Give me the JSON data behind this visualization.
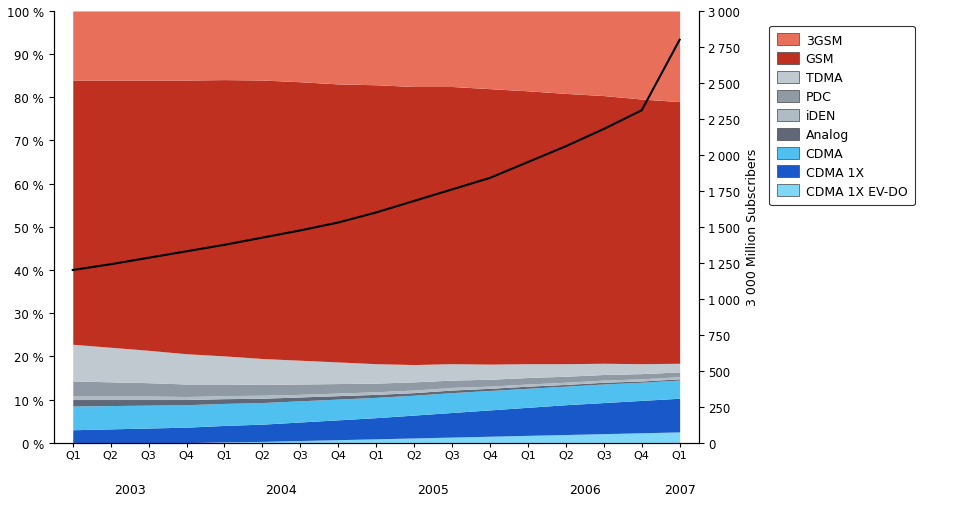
{
  "right_axis_label": "3 000 Million Subscribers",
  "x_labels_years": [
    "2003",
    "2004",
    "2005",
    "2006",
    "2007"
  ],
  "x_labels_quarters": [
    "Q1",
    "Q2",
    "Q3",
    "Q4",
    "Q1",
    "Q2",
    "Q3",
    "Q4",
    "Q1",
    "Q2",
    "Q3",
    "Q4",
    "Q1",
    "Q2",
    "Q3",
    "Q4",
    "Q1"
  ],
  "series": {
    "CDMA 1X EV-DO": [
      0.0,
      0.0,
      0.0,
      0.0,
      0.2,
      0.3,
      0.5,
      0.7,
      0.9,
      1.1,
      1.3,
      1.5,
      1.7,
      1.9,
      2.1,
      2.3,
      2.5
    ],
    "CDMA 1X": [
      3.0,
      3.2,
      3.4,
      3.6,
      3.8,
      4.0,
      4.3,
      4.6,
      4.9,
      5.3,
      5.7,
      6.1,
      6.5,
      6.9,
      7.2,
      7.5,
      7.8
    ],
    "CDMA": [
      5.5,
      5.4,
      5.3,
      5.2,
      5.1,
      5.0,
      4.9,
      4.8,
      4.7,
      4.6,
      4.6,
      4.5,
      4.4,
      4.3,
      4.3,
      4.2,
      4.2
    ],
    "Analog": [
      1.5,
      1.4,
      1.3,
      1.2,
      1.1,
      1.0,
      0.9,
      0.8,
      0.7,
      0.6,
      0.6,
      0.5,
      0.5,
      0.4,
      0.4,
      0.3,
      0.3
    ],
    "iDEN": [
      0.8,
      0.8,
      0.8,
      0.7,
      0.7,
      0.7,
      0.6,
      0.6,
      0.6,
      0.6,
      0.6,
      0.5,
      0.5,
      0.5,
      0.5,
      0.5,
      0.5
    ],
    "PDC": [
      3.5,
      3.3,
      3.1,
      2.9,
      2.7,
      2.5,
      2.4,
      2.2,
      2.0,
      1.9,
      1.7,
      1.6,
      1.5,
      1.4,
      1.3,
      1.2,
      1.1
    ],
    "TDMA": [
      8.5,
      8.0,
      7.5,
      7.0,
      6.5,
      6.0,
      5.5,
      5.0,
      4.5,
      4.0,
      3.8,
      3.5,
      3.2,
      2.9,
      2.6,
      2.3,
      2.0
    ],
    "GSM": [
      61.2,
      61.9,
      62.6,
      63.4,
      64.0,
      64.5,
      64.5,
      64.4,
      64.6,
      64.4,
      64.2,
      63.8,
      63.2,
      62.6,
      62.0,
      61.3,
      60.6
    ],
    "3GSM": [
      16.0,
      16.0,
      16.0,
      16.0,
      15.9,
      16.0,
      16.4,
      16.9,
      17.1,
      17.5,
      17.5,
      18.0,
      18.5,
      19.1,
      19.6,
      20.4,
      21.0
    ]
  },
  "total_subscribers_million": [
    1200,
    1240,
    1285,
    1330,
    1375,
    1425,
    1475,
    1530,
    1600,
    1680,
    1760,
    1840,
    1950,
    2060,
    2180,
    2310,
    2800
  ],
  "stack_order": [
    "CDMA 1X EV-DO",
    "CDMA 1X",
    "CDMA",
    "Analog",
    "iDEN",
    "PDC",
    "TDMA",
    "GSM",
    "3GSM"
  ],
  "colors": {
    "3GSM": "#e8705a",
    "GSM": "#c03020",
    "TDMA": "#c0c8d0",
    "PDC": "#909aa5",
    "iDEN": "#b0bcc4",
    "Analog": "#606878",
    "CDMA": "#50c0f0",
    "CDMA 1X": "#1858c8",
    "CDMA 1X EV-DO": "#80d8f8"
  },
  "legend_order": [
    "3GSM",
    "GSM",
    "TDMA",
    "PDC",
    "iDEN",
    "Analog",
    "CDMA",
    "CDMA 1X",
    "CDMA 1X EV-DO"
  ],
  "ylim_left": [
    0,
    100
  ],
  "ylim_right": [
    0,
    3000
  ],
  "yticks_left": [
    0,
    10,
    20,
    30,
    40,
    50,
    60,
    70,
    80,
    90,
    100
  ],
  "yticks_right": [
    0,
    250,
    500,
    750,
    1000,
    1250,
    1500,
    1750,
    2000,
    2250,
    2500,
    2750,
    3000
  ]
}
